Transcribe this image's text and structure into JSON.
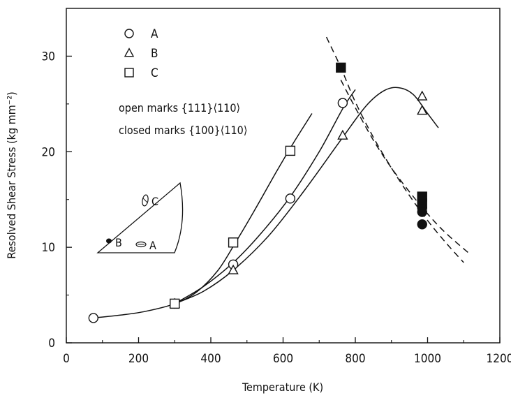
{
  "chart_data": {
    "type": "scatter",
    "xlabel": "Temperature (K)",
    "ylabel": "Resolved Shear Stress (kg mm⁻²)",
    "xlim": [
      0,
      1200
    ],
    "ylim": [
      0,
      35
    ],
    "x_ticks": [
      0,
      200,
      400,
      600,
      800,
      1000,
      1200
    ],
    "y_ticks": [
      0,
      10,
      20,
      30
    ],
    "grid": false,
    "legend": {
      "position": "top-left",
      "entries": [
        {
          "marker": "circle",
          "label": "A"
        },
        {
          "marker": "triangle",
          "label": "B"
        },
        {
          "marker": "square",
          "label": "C"
        }
      ]
    },
    "annotations": [
      "open marks {111}⟨110⟩",
      "closed marks {100}⟨110⟩"
    ],
    "inset_labels": [
      "C",
      "B",
      "A"
    ],
    "series": [
      {
        "marker": "circle",
        "fill": "open",
        "x": [
          75,
          300,
          462,
          620,
          765
        ],
        "y": [
          2.6,
          4.1,
          8.2,
          15.1,
          25.1
        ]
      },
      {
        "marker": "triangle",
        "fill": "open",
        "x": [
          300,
          462,
          765,
          985,
          985
        ],
        "y": [
          4.1,
          7.6,
          21.7,
          24.3,
          25.8
        ]
      },
      {
        "marker": "square",
        "fill": "open",
        "x": [
          300,
          462,
          620
        ],
        "y": [
          4.1,
          10.5,
          20.1
        ]
      },
      {
        "marker": "square",
        "fill": "closed",
        "x": [
          760,
          985,
          985
        ],
        "y": [
          28.8,
          15.3,
          14.6
        ]
      },
      {
        "marker": "circle",
        "fill": "closed",
        "x": [
          985,
          985,
          985
        ],
        "y": [
          14.1,
          13.7,
          12.4
        ]
      }
    ],
    "curves": [
      {
        "style": "solid",
        "x": [
          75,
          150,
          220,
          300,
          360,
          420,
          470,
          520,
          580,
          630,
          680
        ],
        "y": [
          2.6,
          2.9,
          3.3,
          4.1,
          5.3,
          7.6,
          10.6,
          13.8,
          17.8,
          21.0,
          24.0
        ]
      },
      {
        "style": "solid",
        "x": [
          300,
          380,
          462,
          540,
          620,
          700,
          765,
          800
        ],
        "y": [
          4.1,
          5.9,
          8.4,
          11.5,
          15.3,
          20.0,
          24.5,
          26.5
        ]
      },
      {
        "style": "solid",
        "x": [
          300,
          380,
          462,
          560,
          660,
          765,
          830,
          880,
          920,
          960,
          1000,
          1030
        ],
        "y": [
          4.1,
          5.4,
          7.6,
          11.2,
          16.0,
          21.5,
          24.8,
          26.4,
          26.7,
          26.0,
          24.0,
          22.5
        ]
      },
      {
        "style": "dashed",
        "x": [
          720,
          760,
          800,
          850,
          900,
          950,
          1000,
          1050,
          1100
        ],
        "y": [
          32.0,
          28.8,
          25.2,
          21.5,
          18.3,
          15.4,
          12.8,
          10.5,
          8.4
        ]
      },
      {
        "style": "dashed",
        "x": [
          760,
          800,
          850,
          900,
          950,
          1000,
          1050,
          1120
        ],
        "y": [
          27.5,
          24.6,
          21.2,
          18.3,
          15.8,
          13.5,
          11.5,
          9.2
        ]
      }
    ]
  }
}
